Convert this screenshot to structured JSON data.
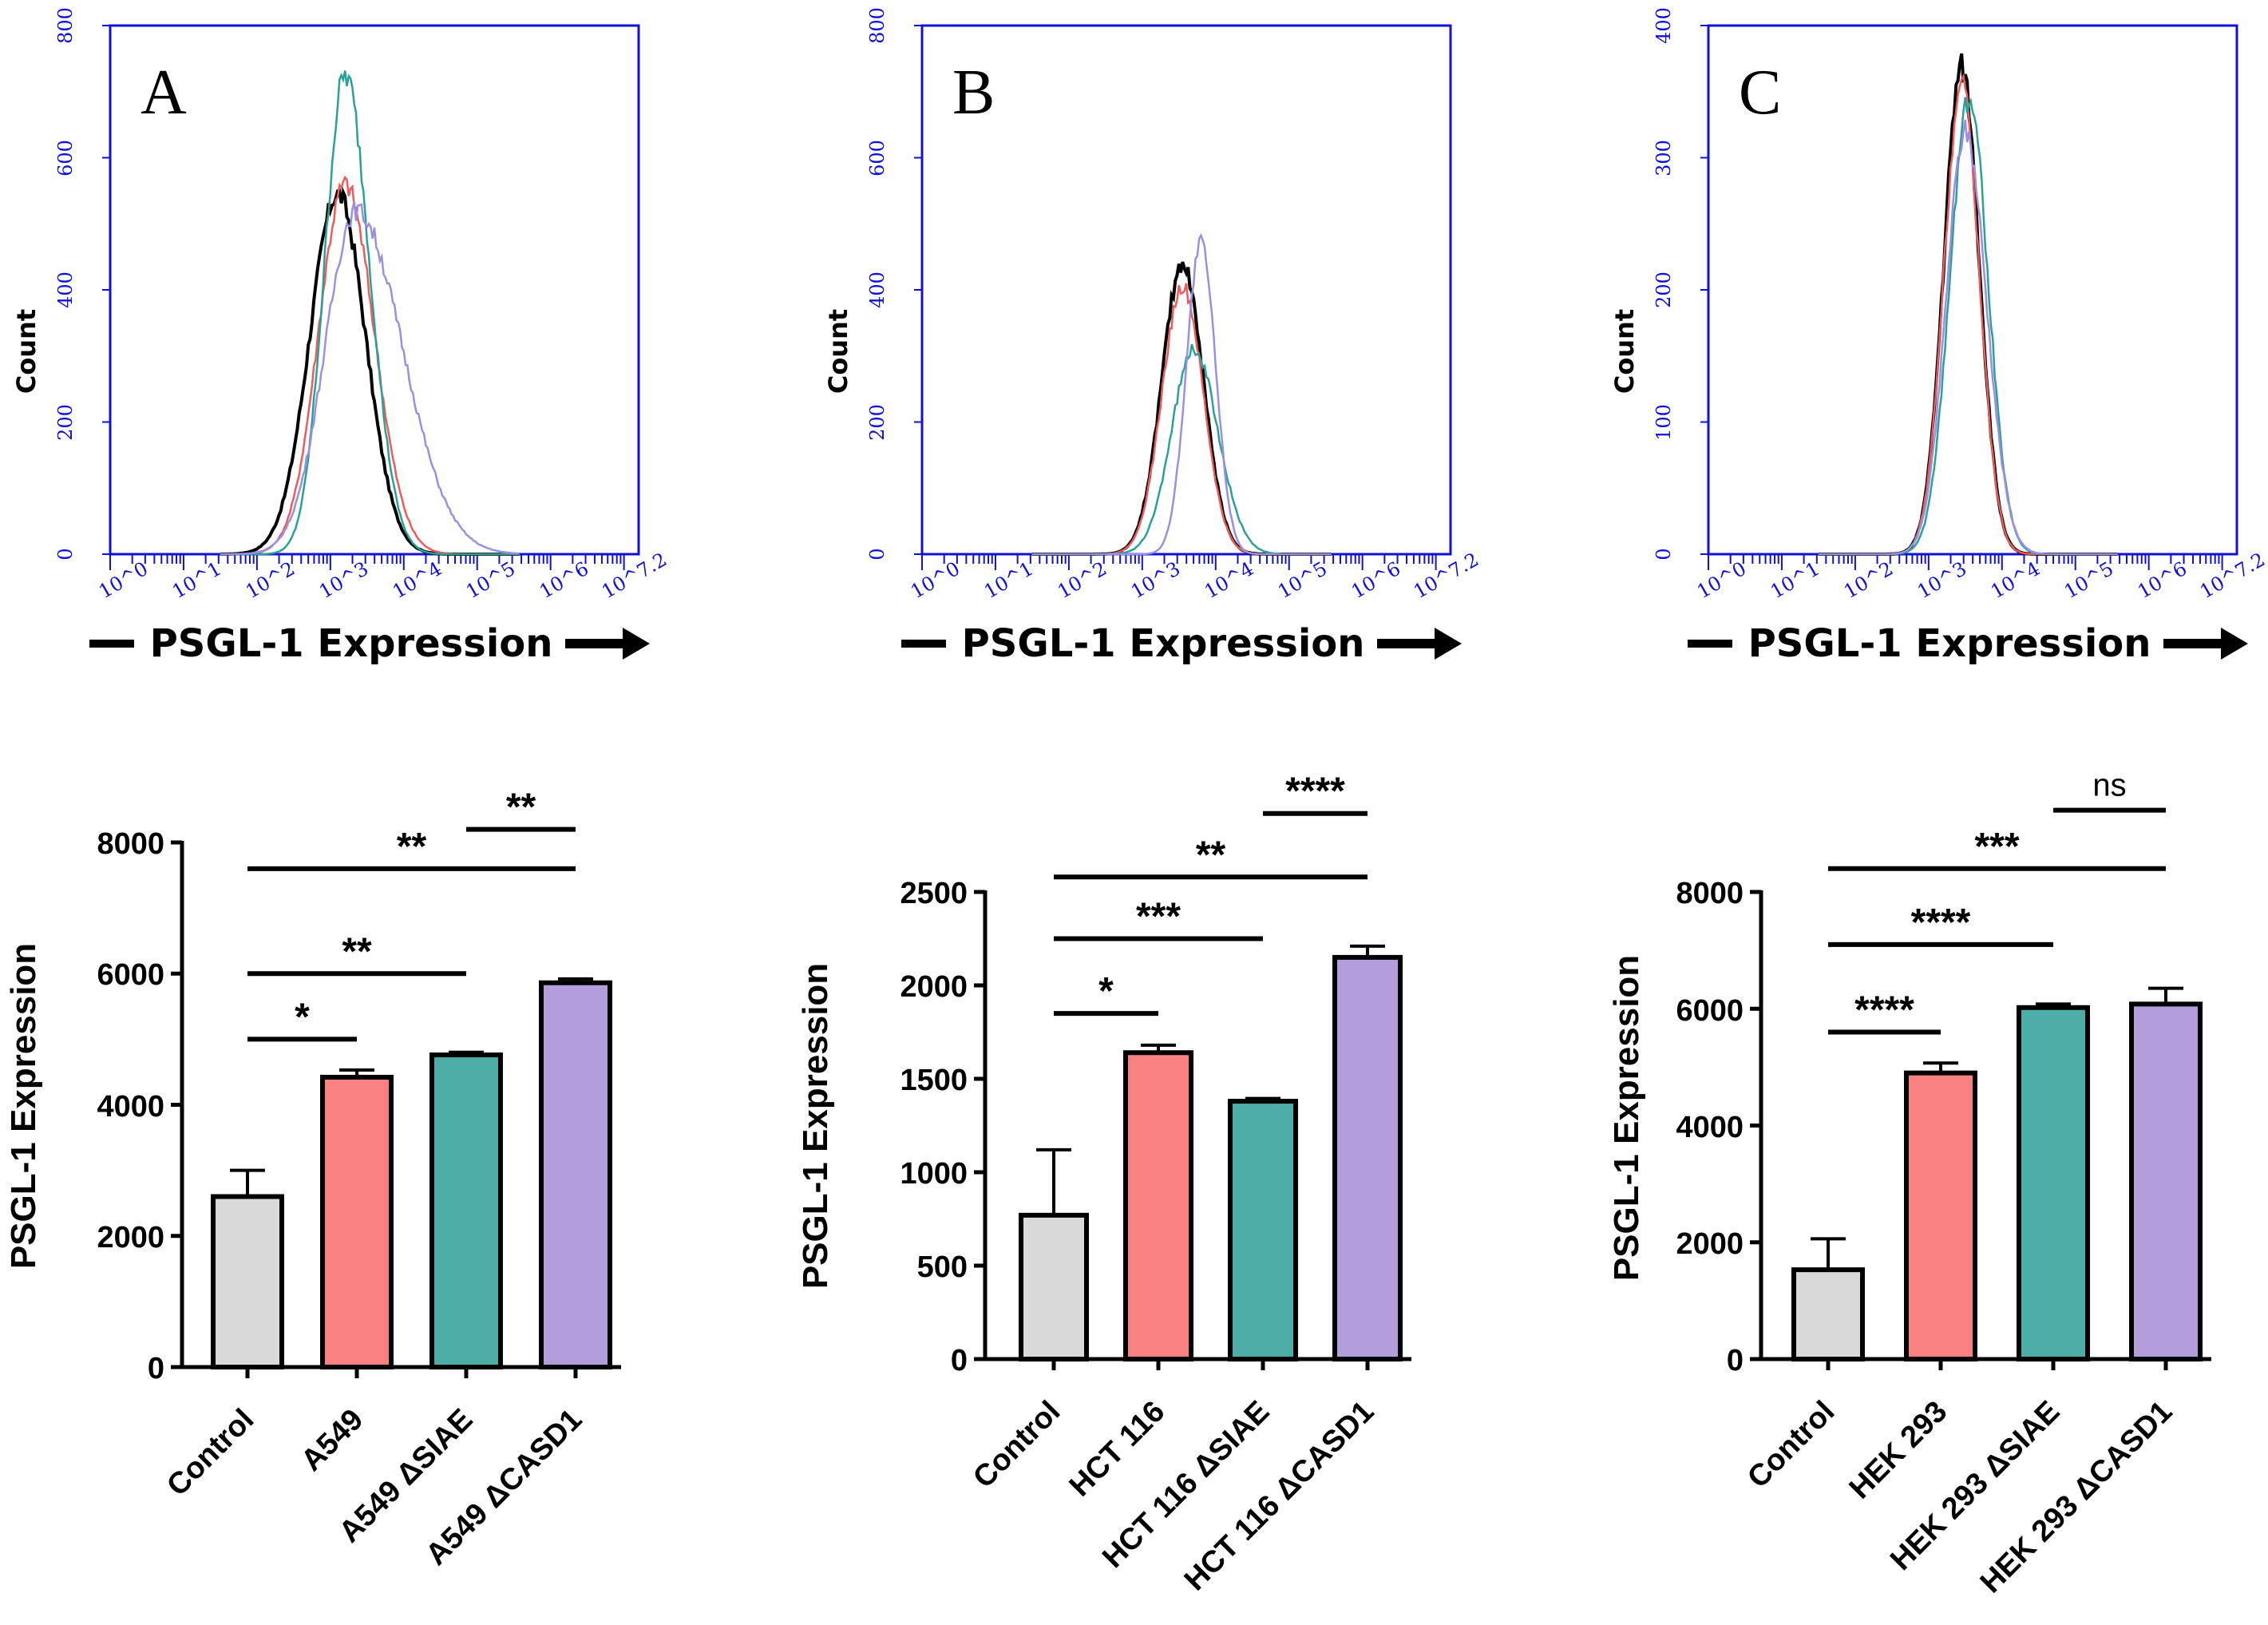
{
  "chart_data": [
    {
      "type": "line",
      "panel": "A",
      "title": "A",
      "xlabel": "PSGL-1 Expression",
      "ylabel": "Count",
      "x_scale": "log10",
      "xlim": [
        0,
        7.2
      ],
      "ylim": [
        0,
        800
      ],
      "yticks": [
        "0",
        "200",
        "400",
        "600",
        "800"
      ],
      "xticks": [
        "10^0",
        "10^1",
        "10^2",
        "10^3",
        "10^4",
        "10^5",
        "10^6",
        "10^7.2"
      ],
      "series": [
        {
          "name": "black",
          "color": "#000000",
          "peak_log": 3.1,
          "peak": 545,
          "width": 0.38,
          "skew": 0.0
        },
        {
          "name": "red",
          "color": "#ef5a5a",
          "peak_log": 3.2,
          "peak": 560,
          "width": 0.36,
          "skew": 0.05
        },
        {
          "name": "teal",
          "color": "#2aa198",
          "peak_log": 3.2,
          "peak": 725,
          "width": 0.28,
          "skew": 0.1
        },
        {
          "name": "lavender",
          "color": "#9a8fe0",
          "peak_log": 3.35,
          "peak": 520,
          "width": 0.42,
          "skew": 0.25
        }
      ]
    },
    {
      "type": "line",
      "panel": "B",
      "title": "B",
      "xlabel": "PSGL-1 Expression",
      "ylabel": "Count",
      "x_scale": "log10",
      "xlim": [
        0,
        7.2
      ],
      "ylim": [
        0,
        800
      ],
      "yticks": [
        "0",
        "200",
        "400",
        "600",
        "800"
      ],
      "xticks": [
        "10^0",
        "10^1",
        "10^2",
        "10^3",
        "10^4",
        "10^5",
        "10^6",
        "10^7.2"
      ],
      "series": [
        {
          "name": "black",
          "color": "#000000",
          "peak_log": 3.55,
          "peak": 440,
          "width": 0.28,
          "skew": 0.0
        },
        {
          "name": "red",
          "color": "#ef5a5a",
          "peak_log": 3.55,
          "peak": 405,
          "width": 0.28,
          "skew": 0.0
        },
        {
          "name": "teal",
          "color": "#2aa198",
          "peak_log": 3.7,
          "peak": 310,
          "width": 0.3,
          "skew": 0.05
        },
        {
          "name": "lavender",
          "color": "#9a8fe0",
          "peak_log": 3.8,
          "peak": 470,
          "width": 0.2,
          "skew": 0.0
        }
      ]
    },
    {
      "type": "line",
      "panel": "C",
      "title": "C",
      "xlabel": "PSGL-1 Expression",
      "ylabel": "Count",
      "x_scale": "log10",
      "xlim": [
        0,
        7.2
      ],
      "ylim": [
        0,
        400
      ],
      "yticks": [
        "0",
        "100",
        "200",
        "300",
        "400"
      ],
      "xticks": [
        "10^0",
        "10^1",
        "10^2",
        "10^3",
        "10^4",
        "10^5",
        "10^6",
        "10^7.2"
      ],
      "series": [
        {
          "name": "black",
          "color": "#000000",
          "peak_log": 3.45,
          "peak": 368,
          "width": 0.24,
          "skew": 0.0
        },
        {
          "name": "red",
          "color": "#ef5a5a",
          "peak_log": 3.45,
          "peak": 355,
          "width": 0.24,
          "skew": 0.0
        },
        {
          "name": "teal",
          "color": "#2aa198",
          "peak_log": 3.55,
          "peak": 345,
          "width": 0.26,
          "skew": 0.0
        },
        {
          "name": "lavender",
          "color": "#9a8fe0",
          "peak_log": 3.5,
          "peak": 320,
          "width": 0.26,
          "skew": 0.05
        }
      ]
    },
    {
      "type": "bar",
      "ylabel": "PSGL-1  Expression",
      "ylim": [
        0,
        8000
      ],
      "yticks": [
        "0",
        "2000",
        "4000",
        "6000",
        "8000"
      ],
      "categories": [
        "Control",
        "A549",
        "A549 ΔSIAE",
        "A549 ΔCASD1"
      ],
      "values": [
        2600,
        4420,
        4760,
        5860
      ],
      "errors": [
        400,
        110,
        40,
        60
      ],
      "colors": [
        "#d9d9d9",
        "#f98181",
        "#4dada7",
        "#b39ddb"
      ],
      "significance": [
        {
          "from": 0,
          "to": 1,
          "label": "*",
          "y": 5000
        },
        {
          "from": 0,
          "to": 2,
          "label": "**",
          "y": 6000
        },
        {
          "from": 0,
          "to": 3,
          "label": "**",
          "y": 7600
        },
        {
          "from": 2,
          "to": 3,
          "label": "**",
          "y": 8200
        }
      ]
    },
    {
      "type": "bar",
      "ylabel": "PSGL-1 Expression",
      "ylim": [
        0,
        2500
      ],
      "yticks": [
        "0",
        "500",
        "1000",
        "1500",
        "2000",
        "2500"
      ],
      "categories": [
        "Control",
        "HCT 116",
        "HCT 116 ΔSIAE",
        "HCT 116 ΔCASD1"
      ],
      "values": [
        770,
        1640,
        1380,
        2150
      ],
      "errors": [
        350,
        40,
        15,
        60
      ],
      "colors": [
        "#d9d9d9",
        "#f98181",
        "#4dada7",
        "#b39ddb"
      ],
      "significance": [
        {
          "from": 0,
          "to": 1,
          "label": "*",
          "y": 1850
        },
        {
          "from": 0,
          "to": 2,
          "label": "***",
          "y": 2250
        },
        {
          "from": 0,
          "to": 3,
          "label": "**",
          "y": 2580
        },
        {
          "from": 2,
          "to": 3,
          "label": "****",
          "y": 2920
        }
      ]
    },
    {
      "type": "bar",
      "ylabel": "PSGL-1 Expression",
      "ylim": [
        0,
        8000
      ],
      "yticks": [
        "0",
        "2000",
        "4000",
        "6000",
        "8000"
      ],
      "categories": [
        "Control",
        "HEK 293",
        "HEK 293 ΔSIAE",
        "HEK 293 ΔCASD1"
      ],
      "values": [
        1530,
        4900,
        6020,
        6080
      ],
      "errors": [
        530,
        170,
        60,
        270
      ],
      "colors": [
        "#d9d9d9",
        "#f98181",
        "#4dada7",
        "#b39ddb"
      ],
      "significance": [
        {
          "from": 0,
          "to": 1,
          "label": "****",
          "y": 5600
        },
        {
          "from": 0,
          "to": 2,
          "label": "****",
          "y": 7100
        },
        {
          "from": 0,
          "to": 3,
          "label": "***",
          "y": 8400
        },
        {
          "from": 2,
          "to": 3,
          "label": "ns",
          "y": 9400
        }
      ]
    }
  ]
}
